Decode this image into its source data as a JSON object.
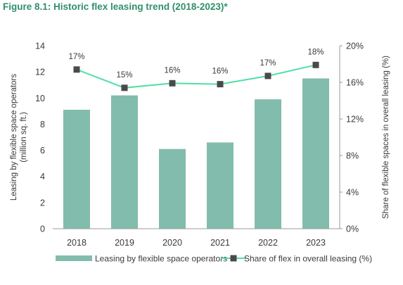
{
  "title": "Figure 8.1: Historic flex leasing trend (2018-2023)*",
  "colors": {
    "bar": "#82bcad",
    "line": "#4fe0a4",
    "marker": "#4a4a4a",
    "title": "#2f8f6a",
    "axis": "#9a9a9a"
  },
  "chart_data": {
    "type": "bar+line",
    "categories": [
      "2018",
      "2019",
      "2020",
      "2021",
      "2022",
      "2023"
    ],
    "series": [
      {
        "name": "Leasing by flexible space operators",
        "type": "bar",
        "axis": "left",
        "values": [
          9.1,
          10.2,
          6.1,
          6.6,
          9.9,
          11.5
        ]
      },
      {
        "name": "Share of flex in overall leasing (%)",
        "type": "line",
        "axis": "right",
        "values": [
          17.4,
          15.4,
          15.9,
          15.8,
          16.7,
          17.9
        ],
        "labels": [
          "17%",
          "15%",
          "16%",
          "16%",
          "17%",
          "18%"
        ]
      }
    ],
    "y_left": {
      "label": "Leasing by flexible space operators (million sq. ft.)",
      "label_lines": [
        "Leasing by flexible space operators",
        "(million sq. ft.)"
      ],
      "range": [
        0,
        14
      ],
      "ticks": [
        "0",
        "2",
        "4",
        "6",
        "8",
        "10",
        "12",
        "14"
      ]
    },
    "y_right": {
      "label": "Share of flexible spaces in overall leasing (%)",
      "range": [
        0,
        20
      ],
      "ticks": [
        "0%",
        "4%",
        "8%",
        "12%",
        "16%",
        "20%"
      ]
    },
    "legend_position": "bottom",
    "grid": false
  }
}
